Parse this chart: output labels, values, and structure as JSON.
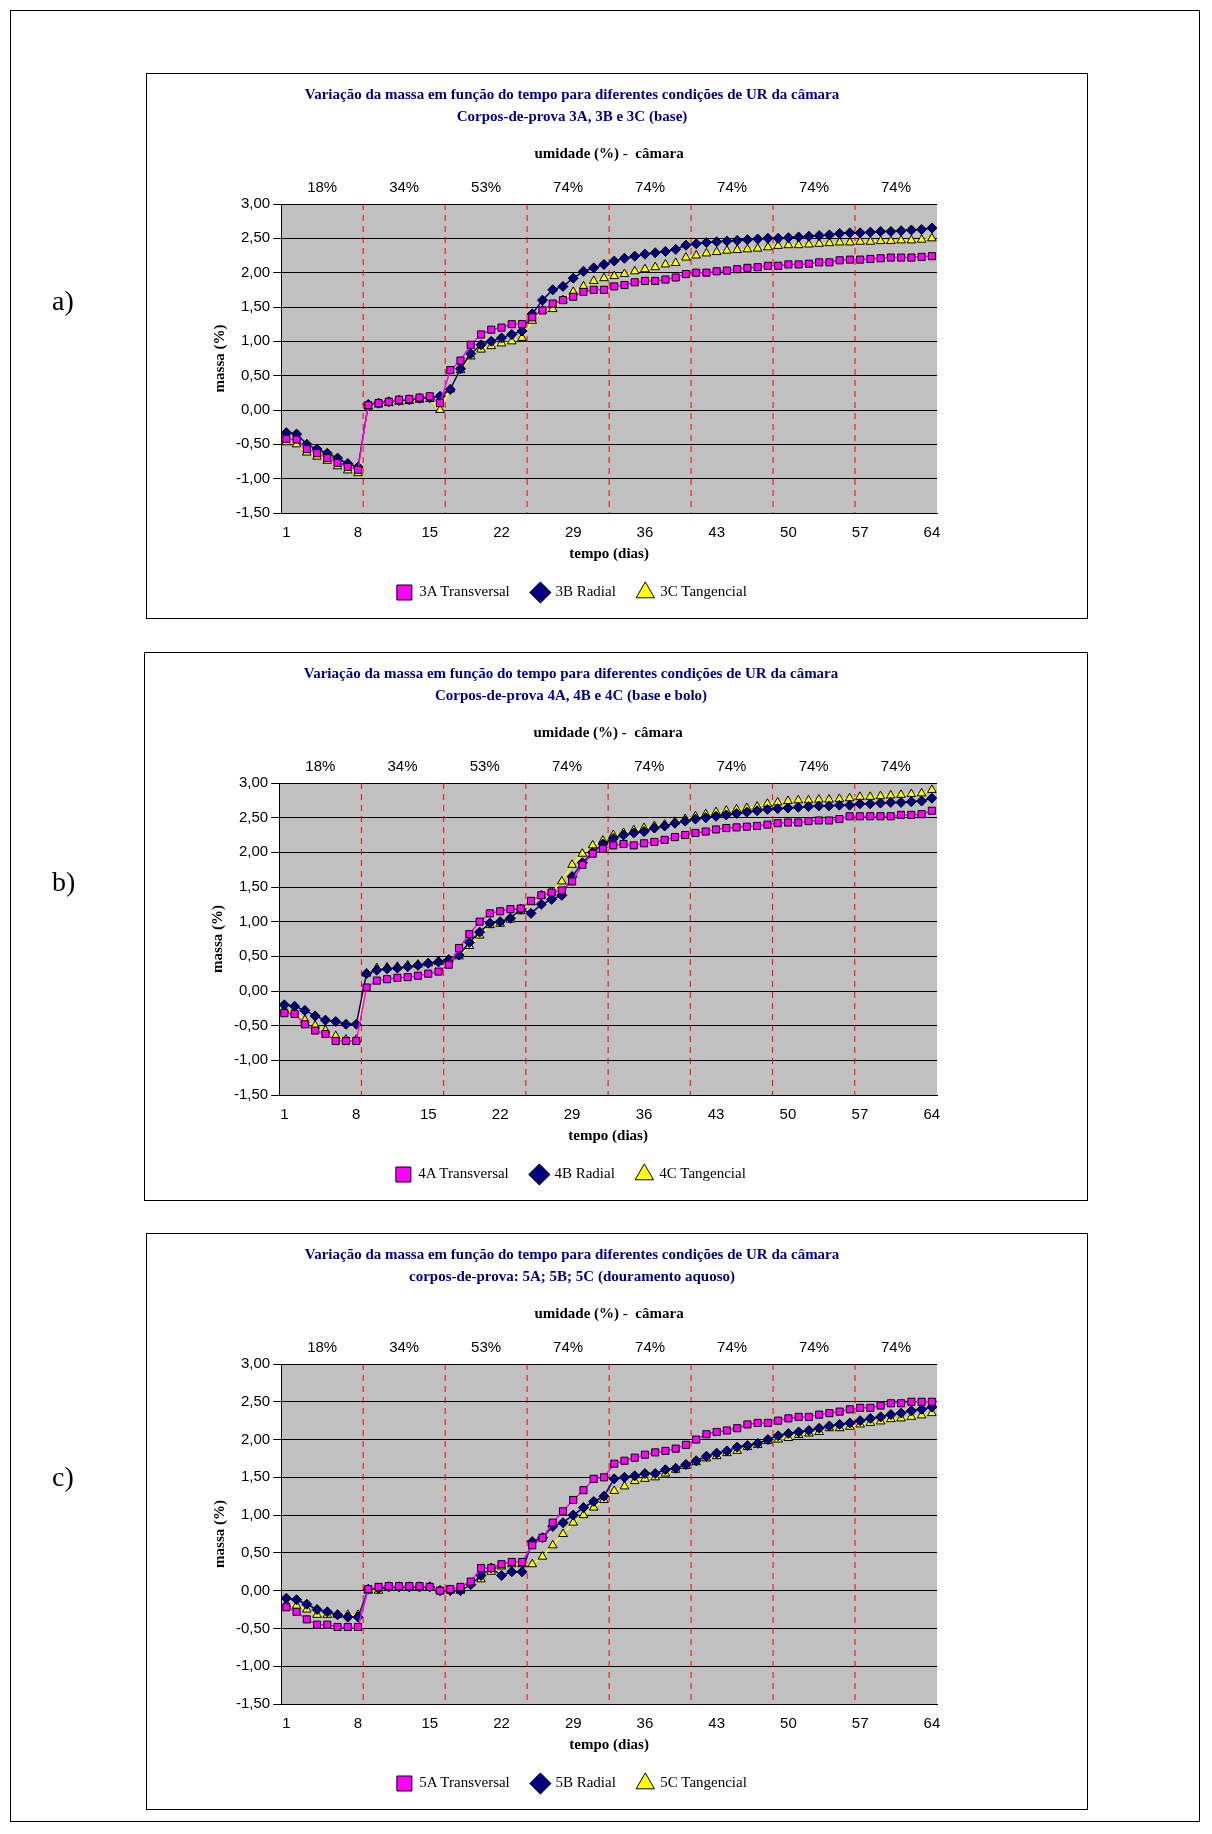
{
  "chart_data": [
    {
      "type": "line",
      "title": "Variação da massa em função do tempo para diferentes condições de UR da câmara",
      "subtitle": "Corpos-de-prova 3A, 3B e 3C (base)",
      "xlabel": "tempo (dias)",
      "ylabel": "massa (%)",
      "annotations": [
        "umidade (%) -  câmara",
        "a)",
        "18%",
        "34%",
        "53%",
        "74%",
        "74%",
        "74%",
        "74%",
        "74%"
      ],
      "x": [
        1,
        2,
        3,
        4,
        5,
        6,
        7,
        8,
        9,
        10,
        11,
        12,
        13,
        14,
        15,
        16,
        17,
        18,
        19,
        20,
        21,
        22,
        23,
        24,
        25,
        26,
        27,
        28,
        29,
        30,
        31,
        32,
        33,
        34,
        35,
        36,
        37,
        38,
        39,
        40,
        41,
        42,
        43,
        44,
        45,
        46,
        47,
        48,
        49,
        50,
        51,
        52,
        53,
        54,
        55,
        56,
        57,
        58,
        59,
        60,
        61,
        62,
        63,
        64
      ],
      "xlim": [
        0.5,
        64.5
      ],
      "xticks": [
        1,
        8,
        15,
        22,
        29,
        36,
        43,
        50,
        57,
        64
      ],
      "ylim": [
        -1.5,
        3
      ],
      "yticks": [
        {
          "value": -1.5,
          "label": "-1,50"
        },
        {
          "value": -1,
          "label": "-1,00"
        },
        {
          "value": -0.5,
          "label": "-0,50"
        },
        {
          "value": 0,
          "label": "0,00"
        },
        {
          "value": 0.5,
          "label": "0,50"
        },
        {
          "value": 1,
          "label": "1,00"
        },
        {
          "value": 1.5,
          "label": "1,50"
        },
        {
          "value": 2,
          "label": "2,00"
        },
        {
          "value": 2.5,
          "label": "2,50"
        },
        {
          "value": 3,
          "label": "3,00"
        }
      ],
      "grid": "y",
      "legend": "bottom",
      "ref_lines": [
        {
          "axis": "x",
          "value": 8.5,
          "color": "#ff0000",
          "line_style": "dashed"
        },
        {
          "axis": "x",
          "value": 16.5,
          "color": "#ff0000",
          "line_style": "dashed"
        },
        {
          "axis": "x",
          "value": 24.5,
          "color": "#ff0000",
          "line_style": "dashed"
        },
        {
          "axis": "x",
          "value": 32.5,
          "color": "#ff0000",
          "line_style": "dashed"
        },
        {
          "axis": "x",
          "value": 40.5,
          "color": "#ff0000",
          "line_style": "dashed"
        },
        {
          "axis": "x",
          "value": 48.5,
          "color": "#ff0000",
          "line_style": "dashed"
        },
        {
          "axis": "x",
          "value": 56.5,
          "color": "#ff0000",
          "line_style": "dashed"
        }
      ],
      "series": [
        {
          "name": "3A Transversal",
          "color": "#ff00ff",
          "marker": "square",
          "values": [
            -0.42,
            -0.43,
            -0.57,
            -0.63,
            -0.7,
            -0.77,
            -0.83,
            -0.87,
            0.07,
            0.1,
            0.12,
            0.15,
            0.16,
            0.18,
            0.2,
            0.1,
            0.58,
            0.72,
            0.95,
            1.1,
            1.17,
            1.2,
            1.25,
            1.25,
            1.35,
            1.45,
            1.55,
            1.6,
            1.65,
            1.72,
            1.75,
            1.75,
            1.8,
            1.82,
            1.86,
            1.88,
            1.88,
            1.9,
            1.93,
            1.98,
            2.0,
            2.0,
            2.02,
            2.03,
            2.05,
            2.07,
            2.08,
            2.1,
            2.1,
            2.12,
            2.12,
            2.13,
            2.15,
            2.15,
            2.18,
            2.19,
            2.19,
            2.2,
            2.21,
            2.22,
            2.22,
            2.22,
            2.23,
            2.24
          ]
        },
        {
          "name": "3B Radial",
          "color": "#000080",
          "marker": "diamond",
          "values": [
            -0.33,
            -0.35,
            -0.5,
            -0.57,
            -0.63,
            -0.7,
            -0.78,
            -0.83,
            0.08,
            0.1,
            0.12,
            0.14,
            0.15,
            0.17,
            0.18,
            0.2,
            0.3,
            0.6,
            0.82,
            0.95,
            1.0,
            1.05,
            1.1,
            1.15,
            1.4,
            1.6,
            1.75,
            1.8,
            1.92,
            2.02,
            2.07,
            2.12,
            2.17,
            2.21,
            2.24,
            2.27,
            2.29,
            2.31,
            2.34,
            2.4,
            2.42,
            2.44,
            2.45,
            2.46,
            2.47,
            2.48,
            2.49,
            2.5,
            2.5,
            2.51,
            2.52,
            2.53,
            2.54,
            2.55,
            2.57,
            2.58,
            2.58,
            2.59,
            2.6,
            2.6,
            2.61,
            2.62,
            2.63,
            2.65
          ]
        },
        {
          "name": "3C Tangencial",
          "color": "#ffff00",
          "marker": "triangle",
          "values": [
            -0.47,
            -0.5,
            -0.62,
            -0.68,
            -0.74,
            -0.82,
            -0.88,
            -0.92,
            0.05,
            0.08,
            0.1,
            0.12,
            0.13,
            0.15,
            0.16,
            0.0,
            0.3,
            0.58,
            0.78,
            0.88,
            0.93,
            0.97,
            1.0,
            1.05,
            1.3,
            1.45,
            1.47,
            1.6,
            1.72,
            1.8,
            1.88,
            1.92,
            1.95,
            1.98,
            2.02,
            2.05,
            2.08,
            2.12,
            2.14,
            2.22,
            2.25,
            2.28,
            2.3,
            2.32,
            2.33,
            2.34,
            2.35,
            2.37,
            2.39,
            2.4,
            2.4,
            2.41,
            2.42,
            2.43,
            2.44,
            2.44,
            2.45,
            2.45,
            2.46,
            2.46,
            2.47,
            2.47,
            2.48,
            2.5
          ]
        }
      ]
    },
    {
      "type": "line",
      "title": "Variação da massa em função do tempo para diferentes condições de UR da câmara",
      "subtitle": "Corpos-de-prova 4A, 4B e 4C (base e bolo)",
      "xlabel": "tempo (dias)",
      "ylabel": "massa (%)",
      "annotations": [
        "umidade (%) -  câmara",
        "b)",
        "18%",
        "34%",
        "53%",
        "74%",
        "74%",
        "74%",
        "74%",
        "74%"
      ],
      "x": [
        1,
        2,
        3,
        4,
        5,
        6,
        7,
        8,
        9,
        10,
        11,
        12,
        13,
        14,
        15,
        16,
        17,
        18,
        19,
        20,
        21,
        22,
        23,
        24,
        25,
        26,
        27,
        28,
        29,
        30,
        31,
        32,
        33,
        34,
        35,
        36,
        37,
        38,
        39,
        40,
        41,
        42,
        43,
        44,
        45,
        46,
        47,
        48,
        49,
        50,
        51,
        52,
        53,
        54,
        55,
        56,
        57,
        58,
        59,
        60,
        61,
        62,
        63,
        64
      ],
      "xlim": [
        0.5,
        64.5
      ],
      "xticks": [
        1,
        8,
        15,
        22,
        29,
        36,
        43,
        50,
        57,
        64
      ],
      "ylim": [
        -1.5,
        3
      ],
      "yticks": [
        {
          "value": -1.5,
          "label": "-1,50"
        },
        {
          "value": -1,
          "label": "-1,00"
        },
        {
          "value": -0.5,
          "label": "-0,50"
        },
        {
          "value": 0,
          "label": "0,00"
        },
        {
          "value": 0.5,
          "label": "0,50"
        },
        {
          "value": 1,
          "label": "1,00"
        },
        {
          "value": 1.5,
          "label": "1,50"
        },
        {
          "value": 2,
          "label": "2,00"
        },
        {
          "value": 2.5,
          "label": "2,50"
        },
        {
          "value": 3,
          "label": "3,00"
        }
      ],
      "grid": "y",
      "legend": "bottom",
      "ref_lines": [
        {
          "axis": "x",
          "value": 8.5,
          "color": "#ff0000",
          "line_style": "dashed"
        },
        {
          "axis": "x",
          "value": 16.5,
          "color": "#ff0000",
          "line_style": "dashed"
        },
        {
          "axis": "x",
          "value": 24.5,
          "color": "#ff0000",
          "line_style": "dashed"
        },
        {
          "axis": "x",
          "value": 32.5,
          "color": "#ff0000",
          "line_style": "dashed"
        },
        {
          "axis": "x",
          "value": 40.5,
          "color": "#ff0000",
          "line_style": "dashed"
        },
        {
          "axis": "x",
          "value": 48.5,
          "color": "#ff0000",
          "line_style": "dashed"
        },
        {
          "axis": "x",
          "value": 56.5,
          "color": "#ff0000",
          "line_style": "dashed"
        }
      ],
      "series": [
        {
          "name": "4A Transversal",
          "color": "#ff00ff",
          "marker": "square",
          "values": [
            -0.32,
            -0.33,
            -0.48,
            -0.57,
            -0.62,
            -0.72,
            -0.72,
            -0.72,
            0.05,
            0.15,
            0.17,
            0.19,
            0.2,
            0.22,
            0.25,
            0.28,
            0.38,
            0.62,
            0.82,
            1.0,
            1.12,
            1.15,
            1.18,
            1.19,
            1.3,
            1.38,
            1.42,
            1.45,
            1.58,
            1.82,
            1.98,
            2.05,
            2.1,
            2.12,
            2.1,
            2.13,
            2.15,
            2.18,
            2.22,
            2.25,
            2.28,
            2.3,
            2.33,
            2.35,
            2.36,
            2.37,
            2.38,
            2.4,
            2.42,
            2.43,
            2.43,
            2.45,
            2.46,
            2.46,
            2.48,
            2.52,
            2.52,
            2.52,
            2.52,
            2.52,
            2.54,
            2.54,
            2.55,
            2.6
          ]
        },
        {
          "name": "4B Radial",
          "color": "#000080",
          "marker": "diamond",
          "values": [
            -0.2,
            -0.22,
            -0.28,
            -0.36,
            -0.42,
            -0.44,
            -0.48,
            -0.48,
            0.25,
            0.3,
            0.32,
            0.33,
            0.35,
            0.37,
            0.4,
            0.42,
            0.45,
            0.52,
            0.7,
            0.85,
            0.98,
            1.0,
            1.05,
            1.18,
            1.12,
            1.25,
            1.32,
            1.38,
            1.65,
            1.85,
            2.0,
            2.12,
            2.2,
            2.25,
            2.28,
            2.3,
            2.35,
            2.38,
            2.42,
            2.45,
            2.48,
            2.5,
            2.52,
            2.54,
            2.56,
            2.58,
            2.6,
            2.62,
            2.63,
            2.64,
            2.65,
            2.66,
            2.67,
            2.67,
            2.68,
            2.68,
            2.7,
            2.7,
            2.71,
            2.72,
            2.72,
            2.73,
            2.74,
            2.78
          ]
        },
        {
          "name": "4C Tangencial",
          "color": "#ffff00",
          "marker": "triangle",
          "values": [
            -0.27,
            -0.3,
            -0.42,
            -0.5,
            -0.57,
            -0.65,
            -0.7,
            -0.7,
            0.25,
            0.33,
            0.34,
            0.35,
            0.37,
            0.38,
            0.4,
            0.42,
            0.45,
            0.5,
            0.65,
            0.8,
            0.95,
            0.97,
            1.03,
            1.15,
            1.28,
            1.38,
            1.43,
            1.58,
            1.82,
            1.98,
            2.1,
            2.17,
            2.25,
            2.28,
            2.32,
            2.35,
            2.38,
            2.4,
            2.44,
            2.48,
            2.52,
            2.55,
            2.58,
            2.6,
            2.62,
            2.64,
            2.66,
            2.7,
            2.72,
            2.74,
            2.75,
            2.75,
            2.76,
            2.76,
            2.77,
            2.78,
            2.8,
            2.8,
            2.81,
            2.82,
            2.83,
            2.84,
            2.85,
            2.9
          ]
        }
      ]
    },
    {
      "type": "line",
      "title": "Variação da massa em função do tempo para diferentes condições de UR da câmara",
      "subtitle": "corpos-de-prova: 5A; 5B; 5C (douramento aquoso)",
      "xlabel": "tempo (dias)",
      "ylabel": "massa (%)",
      "annotations": [
        "umidade (%) -  câmara",
        "c)",
        "18%",
        "34%",
        "53%",
        "74%",
        "74%",
        "74%",
        "74%",
        "74%"
      ],
      "x": [
        1,
        2,
        3,
        4,
        5,
        6,
        7,
        8,
        9,
        10,
        11,
        12,
        13,
        14,
        15,
        16,
        17,
        18,
        19,
        20,
        21,
        22,
        23,
        24,
        25,
        26,
        27,
        28,
        29,
        30,
        31,
        32,
        33,
        34,
        35,
        36,
        37,
        38,
        39,
        40,
        41,
        42,
        43,
        44,
        45,
        46,
        47,
        48,
        49,
        50,
        51,
        52,
        53,
        54,
        55,
        56,
        57,
        58,
        59,
        60,
        61,
        62,
        63,
        64
      ],
      "xlim": [
        0.5,
        64.5
      ],
      "xticks": [
        1,
        8,
        15,
        22,
        29,
        36,
        43,
        50,
        57,
        64
      ],
      "ylim": [
        -1.5,
        3
      ],
      "yticks": [
        {
          "value": -1.5,
          "label": "-1,50"
        },
        {
          "value": -1,
          "label": "-1,00"
        },
        {
          "value": -0.5,
          "label": "-0,50"
        },
        {
          "value": 0,
          "label": "0,00"
        },
        {
          "value": 0.5,
          "label": "0,50"
        },
        {
          "value": 1,
          "label": "1,00"
        },
        {
          "value": 1.5,
          "label": "1,50"
        },
        {
          "value": 2,
          "label": "2,00"
        },
        {
          "value": 2.5,
          "label": "2,50"
        },
        {
          "value": 3,
          "label": "3,00"
        }
      ],
      "grid": "y",
      "legend": "bottom",
      "ref_lines": [
        {
          "axis": "x",
          "value": 8.5,
          "color": "#ff0000",
          "line_style": "dashed"
        },
        {
          "axis": "x",
          "value": 16.5,
          "color": "#ff0000",
          "line_style": "dashed"
        },
        {
          "axis": "x",
          "value": 24.5,
          "color": "#ff0000",
          "line_style": "dashed"
        },
        {
          "axis": "x",
          "value": 32.5,
          "color": "#ff0000",
          "line_style": "dashed"
        },
        {
          "axis": "x",
          "value": 40.5,
          "color": "#ff0000",
          "line_style": "dashed"
        },
        {
          "axis": "x",
          "value": 48.5,
          "color": "#ff0000",
          "line_style": "dashed"
        },
        {
          "axis": "x",
          "value": 56.5,
          "color": "#ff0000",
          "line_style": "dashed"
        }
      ],
      "series": [
        {
          "name": "5A Transversal",
          "color": "#ff00ff",
          "marker": "square",
          "values": [
            -0.22,
            -0.28,
            -0.38,
            -0.45,
            -0.45,
            -0.48,
            -0.48,
            -0.48,
            0.02,
            0.05,
            0.06,
            0.06,
            0.06,
            0.06,
            0.05,
            0.0,
            0.02,
            0.05,
            0.12,
            0.3,
            0.3,
            0.35,
            0.38,
            0.38,
            0.6,
            0.7,
            0.9,
            1.05,
            1.2,
            1.33,
            1.48,
            1.5,
            1.68,
            1.72,
            1.76,
            1.8,
            1.83,
            1.85,
            1.88,
            1.93,
            2.0,
            2.07,
            2.1,
            2.12,
            2.15,
            2.2,
            2.22,
            2.22,
            2.25,
            2.28,
            2.3,
            2.3,
            2.33,
            2.35,
            2.37,
            2.4,
            2.42,
            2.42,
            2.45,
            2.48,
            2.48,
            2.5,
            2.5,
            2.5
          ]
        },
        {
          "name": "5B Radial",
          "color": "#000080",
          "marker": "diamond",
          "values": [
            -0.1,
            -0.12,
            -0.18,
            -0.25,
            -0.28,
            -0.32,
            -0.35,
            -0.35,
            0.02,
            0.03,
            0.05,
            0.05,
            0.05,
            0.05,
            0.05,
            0.0,
            0.0,
            0.0,
            0.08,
            0.2,
            0.3,
            0.2,
            0.25,
            0.25,
            0.65,
            0.7,
            0.85,
            0.9,
            1.0,
            1.1,
            1.18,
            1.25,
            1.48,
            1.5,
            1.52,
            1.55,
            1.55,
            1.6,
            1.62,
            1.67,
            1.72,
            1.78,
            1.82,
            1.85,
            1.9,
            1.92,
            1.95,
            2.0,
            2.05,
            2.08,
            2.1,
            2.12,
            2.15,
            2.18,
            2.2,
            2.22,
            2.25,
            2.28,
            2.3,
            2.33,
            2.35,
            2.38,
            2.4,
            2.43
          ]
        },
        {
          "name": "5C Tangencial",
          "color": "#ffff00",
          "marker": "triangle",
          "values": [
            -0.18,
            -0.2,
            -0.25,
            -0.32,
            -0.32,
            -0.32,
            -0.32,
            -0.32,
            0.0,
            0.0,
            0.05,
            0.05,
            0.05,
            0.05,
            0.05,
            0.0,
            0.0,
            0.0,
            0.1,
            0.15,
            0.25,
            0.32,
            0.35,
            0.35,
            0.35,
            0.45,
            0.6,
            0.75,
            0.9,
            1.0,
            1.1,
            1.2,
            1.32,
            1.38,
            1.45,
            1.48,
            1.5,
            1.55,
            1.6,
            1.65,
            1.7,
            1.75,
            1.78,
            1.82,
            1.85,
            1.9,
            1.93,
            1.98,
            2.0,
            2.02,
            2.06,
            2.08,
            2.1,
            2.15,
            2.15,
            2.17,
            2.2,
            2.22,
            2.24,
            2.27,
            2.28,
            2.3,
            2.32,
            2.35
          ]
        }
      ]
    }
  ]
}
